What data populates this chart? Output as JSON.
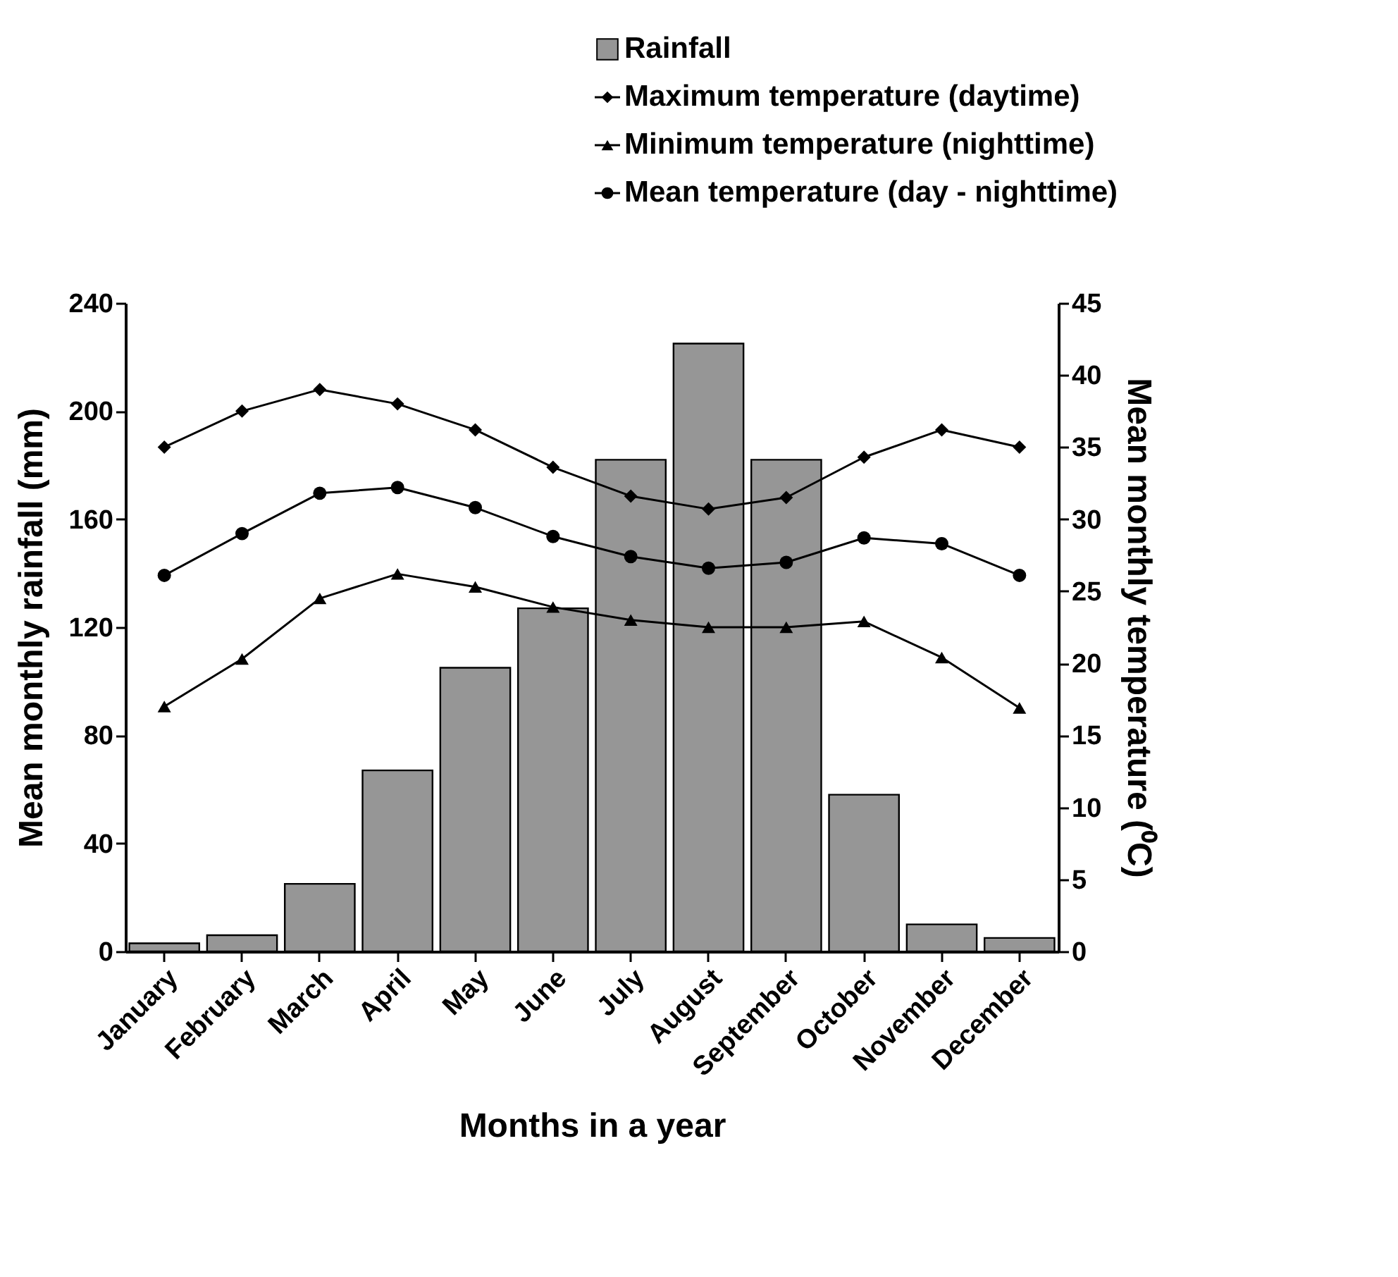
{
  "chart_data": {
    "type": "bar",
    "xlabel": "Months in a year",
    "ylabel": "Mean monthly rainfall (mm)",
    "y2label": "Mean monthly temperature (⁰C)",
    "categories": [
      "January",
      "February",
      "March",
      "April",
      "May",
      "June",
      "July",
      "August",
      "September",
      "October",
      "November",
      "December"
    ],
    "ylim": [
      0,
      240
    ],
    "yticks": [
      0,
      40,
      80,
      120,
      160,
      200,
      240
    ],
    "y2lim": [
      0,
      45
    ],
    "y2ticks": [
      0,
      5,
      10,
      15,
      20,
      25,
      30,
      35,
      40,
      45
    ],
    "grid": false,
    "legend": "top right",
    "series": [
      {
        "name": "Rainfall",
        "color": "#969696",
        "values": [
          3,
          6,
          25,
          67,
          105,
          127,
          182,
          225,
          182,
          58,
          10,
          5
        ]
      },
      {
        "name": "Maximum temperature (daytime)",
        "type": "line",
        "axis": "y2",
        "color": "#000000",
        "marker": "diamond",
        "values": [
          35.0,
          37.5,
          39.0,
          38.0,
          36.2,
          33.6,
          31.6,
          30.7,
          31.5,
          34.3,
          36.2,
          35.0
        ]
      },
      {
        "name": "Minimum temperature (nighttime)",
        "type": "line",
        "axis": "y2",
        "color": "#000000",
        "marker": "triangle",
        "values": [
          17.0,
          20.3,
          24.5,
          26.2,
          25.3,
          23.9,
          23.0,
          22.5,
          22.5,
          22.9,
          20.4,
          16.9
        ]
      },
      {
        "name": "Mean temperature (day - nighttime)",
        "type": "line",
        "axis": "y2",
        "color": "#000000",
        "marker": "circle",
        "values": [
          26.1,
          29.0,
          31.8,
          32.2,
          30.8,
          28.8,
          27.4,
          26.6,
          27.0,
          28.7,
          28.3,
          26.1
        ]
      }
    ]
  }
}
